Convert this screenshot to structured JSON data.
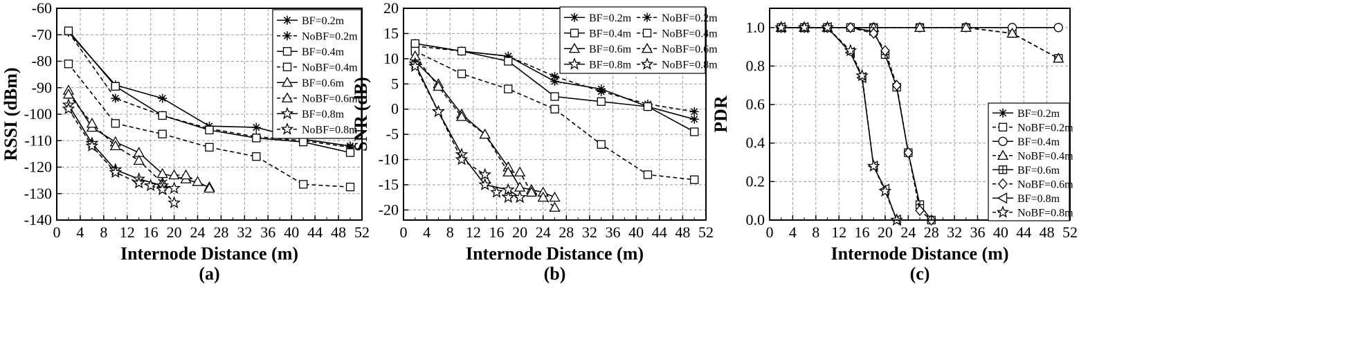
{
  "chart_data": [
    {
      "type": "line",
      "panel_label": "(a)",
      "title": "",
      "xlabel": "Internode Distance (m)",
      "ylabel": "RSSI (dBm)",
      "xlim": [
        0,
        52
      ],
      "ylim": [
        -140,
        -60
      ],
      "xticks": [
        0,
        4,
        8,
        12,
        16,
        20,
        24,
        28,
        32,
        36,
        40,
        44,
        48,
        52
      ],
      "yticks": [
        -140,
        -130,
        -120,
        -110,
        -100,
        -90,
        -80,
        -70,
        -60
      ],
      "grid": true,
      "legend_position": "top-right",
      "legend_columns": 1,
      "series": [
        {
          "name": "BF=0.2m",
          "marker": "asterisk",
          "dashed": false,
          "x": [
            2,
            10,
            18,
            26,
            34,
            42,
            50
          ],
          "y": [
            -69,
            -89,
            -94,
            -104.5,
            -105,
            -109.5,
            -112
          ]
        },
        {
          "name": "NoBF=0.2m",
          "marker": "asterisk",
          "dashed": true,
          "x": [
            2,
            10,
            18,
            26,
            34,
            42,
            50
          ],
          "y": [
            -69,
            -94,
            -100.5,
            -105.5,
            -108.5,
            -110,
            -112.5
          ]
        },
        {
          "name": "BF=0.4m",
          "marker": "square",
          "dashed": false,
          "x": [
            2,
            10,
            18,
            26,
            34,
            42,
            50
          ],
          "y": [
            -68.5,
            -89.5,
            -100.5,
            -106,
            -109,
            -110.5,
            -114.5
          ]
        },
        {
          "name": "NoBF=0.4m",
          "marker": "square",
          "dashed": true,
          "x": [
            2,
            10,
            18,
            26,
            34,
            42,
            50
          ],
          "y": [
            -81,
            -103.5,
            -107.5,
            -112.5,
            -116,
            -126.5,
            -127.5
          ]
        },
        {
          "name": "BF=0.6m",
          "marker": "triangle",
          "dashed": false,
          "x": [
            2,
            6,
            10,
            14,
            18,
            22,
            26
          ],
          "y": [
            -91,
            -105,
            -110.5,
            -114.5,
            -122.5,
            -124.5,
            -127.5
          ]
        },
        {
          "name": "NoBF=0.6m",
          "marker": "triangle",
          "dashed": true,
          "x": [
            2,
            6,
            10,
            14,
            18,
            20,
            22,
            24,
            26
          ],
          "y": [
            -92.5,
            -103.5,
            -112,
            -117.5,
            -126,
            -123,
            -123,
            -125.5,
            -128
          ]
        },
        {
          "name": "BF=0.8m",
          "marker": "star",
          "dashed": false,
          "x": [
            2,
            6,
            10,
            14,
            18,
            20
          ],
          "y": [
            -96.5,
            -111,
            -121,
            -124.5,
            -127,
            -128
          ]
        },
        {
          "name": "NoBF=0.8m",
          "marker": "star",
          "dashed": true,
          "x": [
            2,
            6,
            10,
            14,
            16,
            18,
            20
          ],
          "y": [
            -98,
            -112,
            -122,
            -126,
            -127,
            -128.5,
            -133.5
          ]
        }
      ]
    },
    {
      "type": "line",
      "panel_label": "(b)",
      "title": "",
      "xlabel": "Internode Distance (m)",
      "ylabel": "SNR (dB)",
      "xlim": [
        0,
        52
      ],
      "ylim": [
        -22,
        20
      ],
      "xticks": [
        0,
        4,
        8,
        12,
        16,
        20,
        24,
        28,
        32,
        36,
        40,
        44,
        48,
        52
      ],
      "yticks": [
        -20,
        -15,
        -10,
        -5,
        0,
        5,
        10,
        15,
        20
      ],
      "grid": true,
      "legend_position": "top-right",
      "legend_columns": 2,
      "series": [
        {
          "name": "BF=0.2m",
          "marker": "asterisk",
          "dashed": false,
          "x": [
            2,
            10,
            18,
            26,
            34,
            42,
            50
          ],
          "y": [
            13,
            11.5,
            10.5,
            5.5,
            4,
            0.5,
            -2
          ]
        },
        {
          "name": "NoBF=0.2m",
          "marker": "asterisk",
          "dashed": true,
          "x": [
            2,
            10,
            18,
            26,
            34,
            42,
            50
          ],
          "y": [
            12.5,
            11.5,
            10.5,
            6.5,
            3.5,
            1,
            -0.5
          ]
        },
        {
          "name": "BF=0.4m",
          "marker": "square",
          "dashed": false,
          "x": [
            2,
            10,
            18,
            26,
            34,
            42,
            50
          ],
          "y": [
            13,
            11.5,
            9.5,
            2.5,
            1.5,
            0.5,
            -4.5
          ]
        },
        {
          "name": "NoBF=0.4m",
          "marker": "square",
          "dashed": true,
          "x": [
            2,
            10,
            18,
            26,
            34,
            42,
            50
          ],
          "y": [
            11.5,
            7,
            4,
            0,
            -7,
            -13,
            -14
          ]
        },
        {
          "name": "BF=0.6m",
          "marker": "triangle",
          "dashed": false,
          "x": [
            2,
            6,
            10,
            14,
            18,
            20,
            22,
            24,
            26
          ],
          "y": [
            9.5,
            5,
            -1,
            -5,
            -11.5,
            -15.5,
            -16,
            -16.5,
            -17.5
          ]
        },
        {
          "name": "NoBF=0.6m",
          "marker": "triangle",
          "dashed": true,
          "x": [
            2,
            6,
            10,
            14,
            18,
            20,
            22,
            24,
            26
          ],
          "y": [
            10.5,
            4.5,
            -1.5,
            -5,
            -12.5,
            -12.5,
            -16.5,
            -17.5,
            -19.5
          ]
        },
        {
          "name": "BF=0.8m",
          "marker": "star",
          "dashed": false,
          "x": [
            2,
            6,
            10,
            14,
            18,
            20
          ],
          "y": [
            9,
            -0.5,
            -9,
            -15,
            -16,
            -17.5
          ]
        },
        {
          "name": "NoBF=0.8m",
          "marker": "star",
          "dashed": true,
          "x": [
            2,
            6,
            10,
            14,
            16,
            18,
            20
          ],
          "y": [
            8.5,
            -0.5,
            -10,
            -13,
            -16.5,
            -17.5,
            -17.5
          ]
        }
      ]
    },
    {
      "type": "line",
      "panel_label": "(c)",
      "title": "",
      "xlabel": "Internode Distance (m)",
      "ylabel": "PDR",
      "xlim": [
        0,
        52
      ],
      "ylim": [
        0,
        1.1
      ],
      "xticks": [
        0,
        4,
        8,
        12,
        16,
        20,
        24,
        28,
        32,
        36,
        40,
        44,
        48,
        52
      ],
      "yticks": [
        0.0,
        0.2,
        0.4,
        0.6,
        0.8,
        1.0
      ],
      "ytick_labels": [
        "0.0",
        "0.2",
        "0.4",
        "0.6",
        "0.8",
        "1.0"
      ],
      "grid": true,
      "legend_position": "bottom-right",
      "legend_columns": 1,
      "series": [
        {
          "name": "BF=0.2m",
          "marker": "asterisk",
          "dashed": false,
          "x": [
            2,
            6,
            10,
            18,
            26,
            34,
            42,
            50
          ],
          "y": [
            1,
            1,
            1,
            1,
            1,
            1,
            1,
            1
          ]
        },
        {
          "name": "NoBF=0.2m",
          "marker": "square",
          "dashed": true,
          "x": [
            2,
            6,
            10,
            18,
            26,
            34,
            42,
            50
          ],
          "y": [
            1,
            1,
            1,
            1,
            1,
            1,
            0.97,
            0.84
          ]
        },
        {
          "name": "BF=0.4m",
          "marker": "circle",
          "dashed": false,
          "x": [
            2,
            6,
            10,
            18,
            26,
            34,
            42,
            50
          ],
          "y": [
            1,
            1,
            1,
            1,
            1,
            1,
            1,
            1
          ]
        },
        {
          "name": "NoBF=0.4m",
          "marker": "triangle",
          "dashed": true,
          "x": [
            2,
            6,
            10,
            18,
            26,
            34,
            42,
            50
          ],
          "y": [
            1,
            1,
            1,
            1,
            1,
            1,
            0.97,
            0.84
          ]
        },
        {
          "name": "BF=0.6m",
          "marker": "square-plus",
          "dashed": false,
          "x": [
            2,
            6,
            10,
            14,
            18,
            20,
            22,
            24,
            26,
            28
          ],
          "y": [
            1,
            1,
            1,
            1,
            0.98,
            0.86,
            0.69,
            0.35,
            0.08,
            0
          ]
        },
        {
          "name": "NoBF=0.6m",
          "marker": "diamond",
          "dashed": true,
          "x": [
            2,
            6,
            10,
            14,
            18,
            20,
            22,
            24,
            26,
            28
          ],
          "y": [
            1,
            1,
            1,
            1,
            0.97,
            0.88,
            0.7,
            0.35,
            0.05,
            0
          ]
        },
        {
          "name": "BF=0.8m",
          "marker": "left-triangle",
          "dashed": false,
          "x": [
            2,
            6,
            10,
            14,
            16,
            18,
            20,
            22
          ],
          "y": [
            1,
            1,
            1,
            0.87,
            0.74,
            0.28,
            0.16,
            0
          ]
        },
        {
          "name": "NoBF=0.8m",
          "marker": "star",
          "dashed": true,
          "x": [
            2,
            6,
            10,
            14,
            16,
            18,
            20,
            22
          ],
          "y": [
            1,
            1,
            1,
            0.88,
            0.75,
            0.28,
            0.15,
            0
          ]
        }
      ]
    }
  ]
}
